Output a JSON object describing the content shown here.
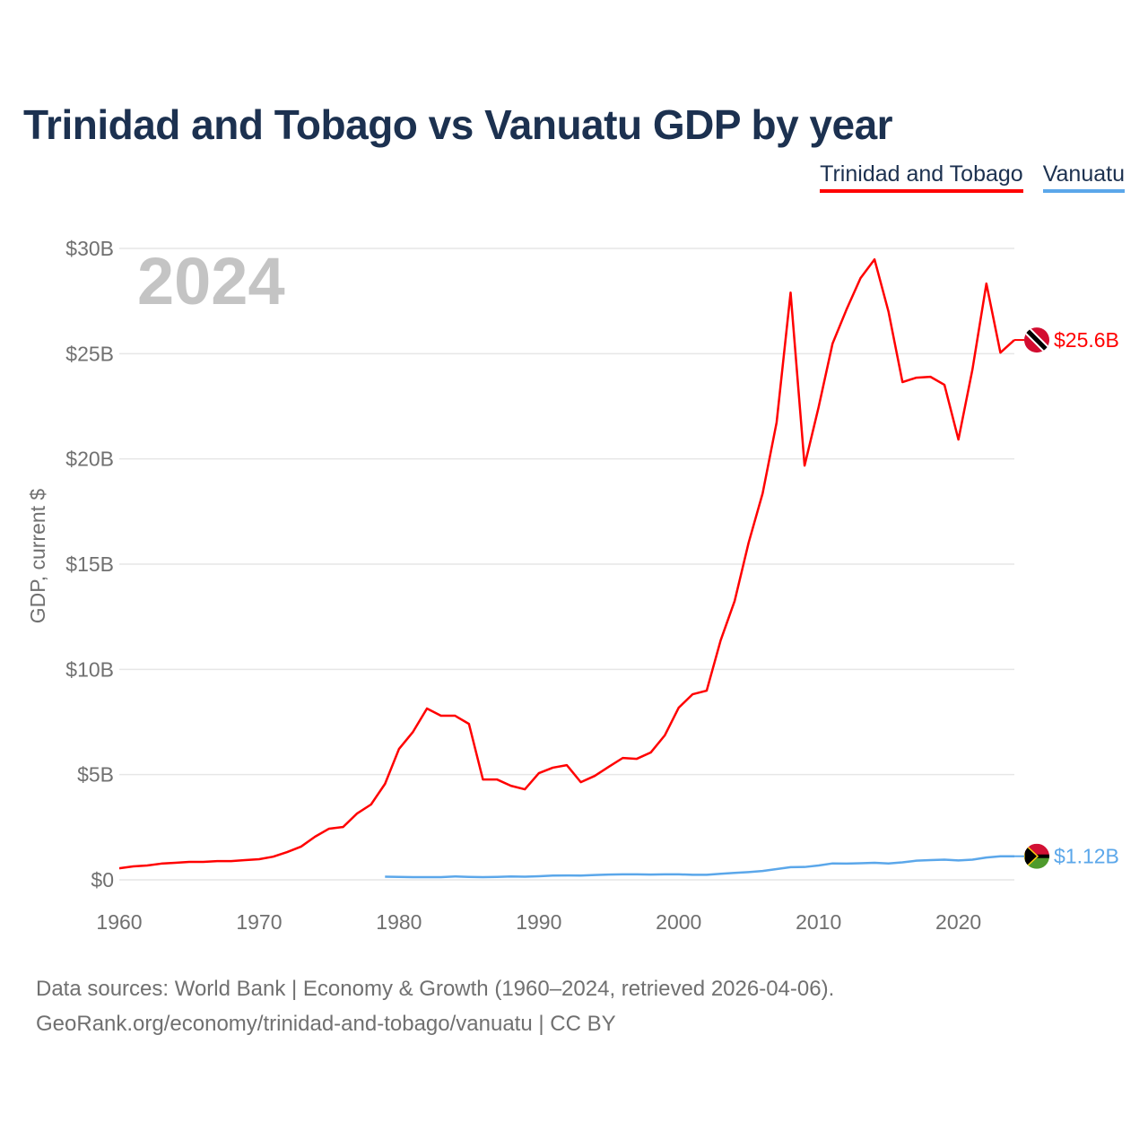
{
  "title": "Trinidad and Tobago vs Vanuatu GDP by year",
  "year_watermark": "2024",
  "footer": {
    "line1": "Data sources: World Bank | Economy & Growth (1960–2024, retrieved 2026-04-06).",
    "line2": "GeoRank.org/economy/trinidad-and-tobago/vanuatu | CC BY"
  },
  "chart_data": {
    "type": "line",
    "title": "Trinidad and Tobago vs Vanuatu GDP by year",
    "xlabel": "",
    "ylabel": "GDP, current $",
    "xlim": [
      1960,
      2024
    ],
    "ylim": [
      0,
      30
    ],
    "x_ticks": [
      1960,
      1970,
      1980,
      1990,
      2000,
      2010,
      2020
    ],
    "x_tick_labels": [
      "1960",
      "1970",
      "1980",
      "1990",
      "2000",
      "2010",
      "2020"
    ],
    "y_ticks": [
      0,
      5,
      10,
      15,
      20,
      25,
      30
    ],
    "y_tick_labels": [
      "$0",
      "$5B",
      "$10B",
      "$15B",
      "$20B",
      "$25B",
      "$30B"
    ],
    "grid": true,
    "legend_position": "top-right",
    "units": "billion USD",
    "series": [
      {
        "name": "Trinidad and Tobago",
        "color": "#ff0000",
        "end_label": "$25.6B",
        "flag": "trinidad-and-tobago-flag",
        "x_start": 1960,
        "values": [
          0.55,
          0.64,
          0.68,
          0.77,
          0.81,
          0.85,
          0.85,
          0.89,
          0.89,
          0.94,
          0.98,
          1.1,
          1.32,
          1.58,
          2.05,
          2.43,
          2.51,
          3.15,
          3.58,
          4.56,
          6.22,
          7.03,
          8.14,
          7.8,
          7.8,
          7.41,
          4.77,
          4.77,
          4.47,
          4.3,
          5.07,
          5.33,
          5.45,
          4.64,
          4.94,
          5.37,
          5.79,
          5.75,
          6.05,
          6.86,
          8.18,
          8.82,
          8.99,
          11.38,
          13.25,
          16.02,
          18.36,
          21.73,
          27.9,
          19.68,
          22.45,
          25.48,
          27.1,
          28.59,
          29.48,
          27.0,
          23.65,
          23.86,
          23.9,
          23.52,
          20.92,
          24.24,
          28.33,
          25.05,
          25.65
        ]
      },
      {
        "name": "Vanuatu",
        "color": "#5ba7ea",
        "end_label": "$1.12B",
        "flag": "vanuatu-flag",
        "x_start": 1979,
        "values": [
          0.15,
          0.14,
          0.13,
          0.13,
          0.13,
          0.16,
          0.14,
          0.13,
          0.14,
          0.16,
          0.15,
          0.17,
          0.2,
          0.21,
          0.2,
          0.23,
          0.25,
          0.26,
          0.26,
          0.25,
          0.26,
          0.26,
          0.24,
          0.24,
          0.29,
          0.33,
          0.37,
          0.42,
          0.51,
          0.6,
          0.61,
          0.68,
          0.78,
          0.77,
          0.79,
          0.81,
          0.78,
          0.83,
          0.91,
          0.94,
          0.96,
          0.92,
          0.96,
          1.06,
          1.12,
          1.12
        ]
      }
    ]
  }
}
